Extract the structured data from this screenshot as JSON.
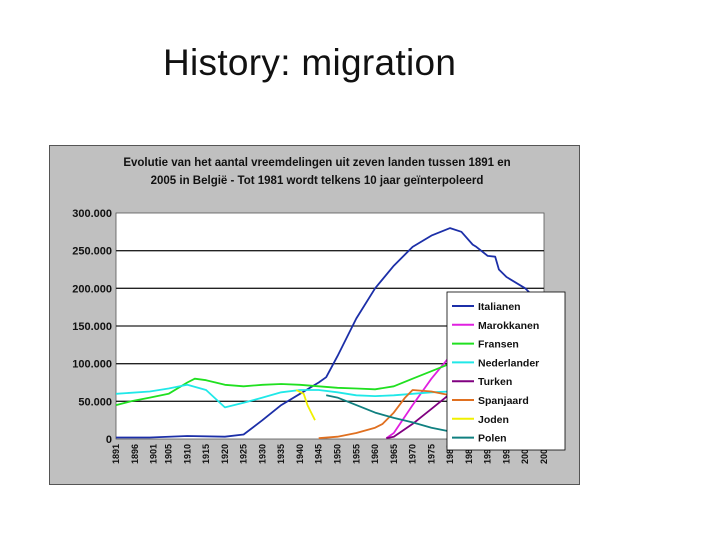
{
  "slide": {
    "title": "History: migration"
  },
  "chart_data": {
    "type": "line",
    "title_lines": [
      "Evolutie van het aantal vreemdelingen uit zeven landen tussen 1891 en",
      "2005 in België - Tot 1981 wordt telkens 10 jaar geïnterpoleerd"
    ],
    "xlabel": "",
    "ylabel": "",
    "xlim": [
      1891,
      2005
    ],
    "ylim": [
      0,
      300000
    ],
    "ytick_labels": [
      "0",
      "50.000",
      "100.000",
      "150.000",
      "200.000",
      "250.000",
      "300.000"
    ],
    "ytick_values": [
      0,
      50000,
      100000,
      150000,
      200000,
      250000,
      300000
    ],
    "xtick_labels": [
      "1891",
      "1896",
      "1901",
      "1905",
      "1910",
      "1915",
      "1920",
      "1925",
      "1930",
      "1935",
      "1940",
      "1945",
      "1950",
      "1955",
      "1960",
      "1965",
      "1970",
      "1975",
      "1980",
      "1985",
      "1990",
      "1995",
      "2000",
      "2005"
    ],
    "xtick_values": [
      1891,
      1896,
      1901,
      1905,
      1910,
      1915,
      1920,
      1925,
      1930,
      1935,
      1940,
      1945,
      1950,
      1955,
      1960,
      1965,
      1970,
      1975,
      1980,
      1985,
      1990,
      1995,
      2000,
      2005
    ],
    "grid": "horizontal",
    "legend_position": "right",
    "series": [
      {
        "name": "Italianen",
        "color": "#1c2fa8",
        "x": [
          1891,
          1900,
          1910,
          1920,
          1925,
          1930,
          1935,
          1940,
          1945,
          1947,
          1950,
          1955,
          1960,
          1965,
          1970,
          1975,
          1980,
          1983,
          1986,
          1987,
          1990,
          1992,
          1993,
          1995,
          2000,
          2003,
          2005
        ],
        "y": [
          2000,
          2000,
          4000,
          3000,
          6000,
          25000,
          45000,
          60000,
          75000,
          82000,
          110000,
          160000,
          200000,
          230000,
          255000,
          270000,
          280000,
          275000,
          258000,
          255000,
          243000,
          242000,
          225000,
          215000,
          200000,
          185000,
          178000
        ]
      },
      {
        "name": "Marokkanen",
        "color": "#e020e0",
        "x": [
          1963,
          1965,
          1970,
          1975,
          1980,
          1985,
          1990,
          1995,
          1998,
          2000,
          2002,
          2005
        ],
        "y": [
          1000,
          8000,
          45000,
          80000,
          110000,
          125000,
          145000,
          145000,
          130000,
          100000,
          85000,
          80000
        ]
      },
      {
        "name": "Fransen",
        "color": "#20e020",
        "x": [
          1891,
          1895,
          1900,
          1905,
          1910,
          1912,
          1915,
          1920,
          1925,
          1930,
          1935,
          1940,
          1945,
          1950,
          1955,
          1960,
          1965,
          1970,
          1975,
          1980,
          1983,
          1985,
          1986,
          1990,
          1995,
          2000,
          2005
        ],
        "y": [
          45000,
          50000,
          55000,
          60000,
          75000,
          80000,
          78000,
          72000,
          70000,
          72000,
          73000,
          72000,
          70000,
          68000,
          67000,
          66000,
          70000,
          80000,
          90000,
          100000,
          103000,
          103000,
          95000,
          92000,
          100000,
          108000,
          115000
        ]
      },
      {
        "name": "Nederlander",
        "color": "#20e8e8",
        "x": [
          1891,
          1900,
          1905,
          1910,
          1915,
          1920,
          1925,
          1930,
          1935,
          1940,
          1945,
          1950,
          1955,
          1960,
          1965,
          1970,
          1975,
          1980,
          1985,
          1990,
          1995,
          2000,
          2005
        ],
        "y": [
          60000,
          63000,
          67000,
          72000,
          65000,
          42000,
          48000,
          55000,
          62000,
          65000,
          65000,
          62000,
          58000,
          57000,
          58000,
          60000,
          62000,
          63000,
          65000,
          68000,
          78000,
          90000,
          100000
        ]
      },
      {
        "name": "Turken",
        "color": "#800080",
        "x": [
          1963,
          1965,
          1970,
          1975,
          1980,
          1985,
          1990,
          1993,
          1995,
          2000,
          2003,
          2005
        ],
        "y": [
          1000,
          3000,
          20000,
          40000,
          60000,
          75000,
          80000,
          88000,
          88000,
          70000,
          40000,
          40000
        ]
      },
      {
        "name": "Spanjaard",
        "color": "#e07020",
        "x": [
          1945,
          1950,
          1955,
          1960,
          1962,
          1965,
          1968,
          1970,
          1975,
          1980,
          1985,
          1990,
          1995,
          2000,
          2005
        ],
        "y": [
          1000,
          3000,
          8000,
          15000,
          20000,
          35000,
          55000,
          65000,
          63000,
          58000,
          55000,
          52000,
          50000,
          47000,
          40000
        ]
      },
      {
        "name": "Joden",
        "color": "#f0f000",
        "x": [
          1939,
          1941,
          1942,
          1943,
          1944
        ],
        "y": [
          65000,
          60000,
          45000,
          35000,
          25000
        ]
      },
      {
        "name": "Polen",
        "color": "#108080",
        "x": [
          1947,
          1950,
          1955,
          1960,
          1965,
          1970,
          1975,
          1980,
          1985,
          1990,
          1995,
          2000,
          2005
        ],
        "y": [
          58000,
          55000,
          45000,
          35000,
          28000,
          22000,
          15000,
          10000,
          8000,
          7000,
          8000,
          10000,
          13000
        ]
      }
    ]
  }
}
